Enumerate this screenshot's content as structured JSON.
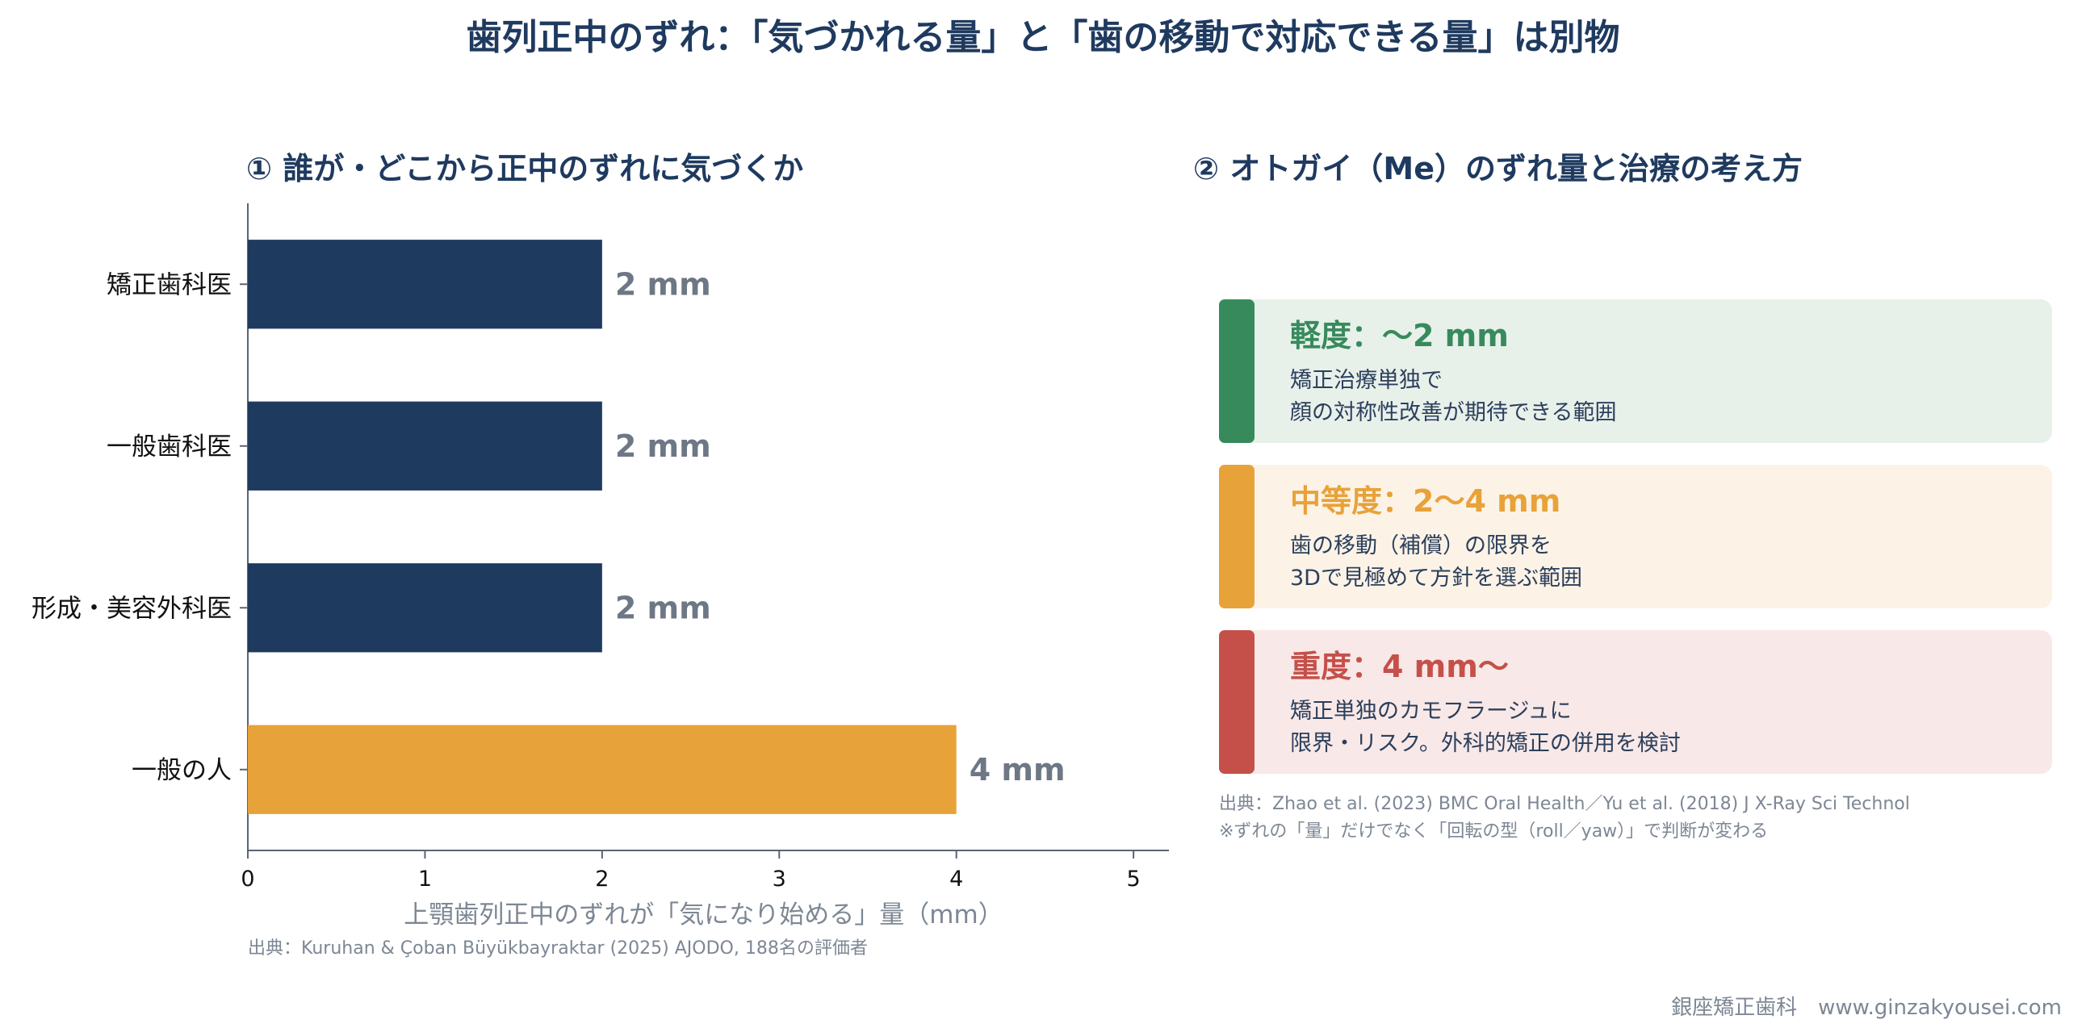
{
  "title": "歯列正中のずれ：「気づかれる量」と「歯の移動で対応できる量」は別物",
  "panel1": {
    "title": "① 誰が・どこから正中のずれに気づくか",
    "source": "出典：Kuruhan & Çoban Büyükbayraktar (2025) AJODO, 188名の評価者"
  },
  "chart_data": {
    "type": "bar",
    "orientation": "horizontal",
    "categories": [
      "矯正歯科医",
      "一般歯科医",
      "形成・美容外科医",
      "一般の人"
    ],
    "values": [
      2,
      2,
      2,
      4
    ],
    "value_labels": [
      "2 mm",
      "2 mm",
      "2 mm",
      "4 mm"
    ],
    "colors": [
      "#1f3a5f",
      "#1f3a5f",
      "#1f3a5f",
      "#e8a23a"
    ],
    "xlabel": "上顎歯列正中のずれが「気になり始める」量（mm）",
    "xticks": [
      "0",
      "1",
      "2",
      "3",
      "4",
      "5"
    ],
    "xlim": [
      0,
      5.2
    ],
    "grid": false
  },
  "panel2": {
    "title": "② オトガイ（Me）のずれ量と治療の考え方",
    "cards": [
      {
        "heading": "軽度：〜2 mm",
        "line1": "矯正治療単独で",
        "line2": "顔の対称性改善が期待できる範囲",
        "accent": "#378a5c",
        "bg": "#e8f0ea"
      },
      {
        "heading": "中等度：2〜4 mm",
        "line1": "歯の移動（補償）の限界を",
        "line2": "3Dで見極めて方針を選ぶ範囲",
        "accent": "#e8a23a",
        "bg": "#fcf3e6"
      },
      {
        "heading": "重度：4 mm〜",
        "line1": "矯正単独のカモフラージュに",
        "line2": "限界・リスク。外科的矯正の併用を検討",
        "accent": "#c5504a",
        "bg": "#f8e8e7"
      }
    ],
    "source1": "出典：Zhao et al. (2023) BMC Oral Health／Yu et al. (2018) J X-Ray Sci Technol",
    "source2": "※ずれの「量」だけでなく「回転の型（roll／yaw）」で判断が変わる"
  },
  "footer": "銀座矯正歯科　www.ginzakyousei.com"
}
